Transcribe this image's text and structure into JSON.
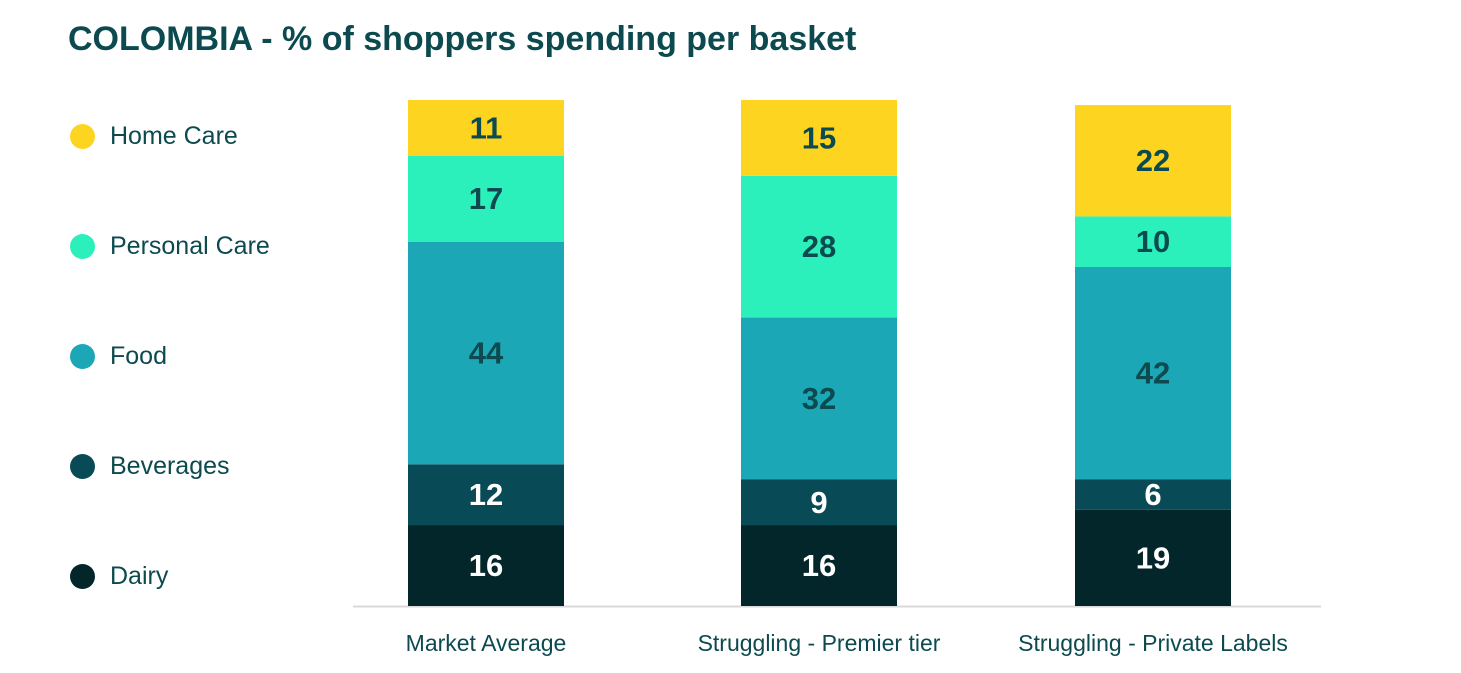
{
  "chart_data": {
    "type": "bar",
    "stacked": true,
    "title": "COLOMBIA - % of shoppers spending per basket",
    "categories": [
      "Market Average",
      "Struggling - Premier tier",
      "Struggling - Private Labels"
    ],
    "series": [
      {
        "name": "Dairy",
        "color": "#03262a",
        "label_color": "#ffffff",
        "values": [
          16,
          16,
          19
        ]
      },
      {
        "name": "Beverages",
        "color": "#084a55",
        "label_color": "#ffffff",
        "values": [
          12,
          9,
          6
        ]
      },
      {
        "name": "Food",
        "color": "#1ba7b6",
        "label_color": "#0c4a4f",
        "values": [
          44,
          32,
          42
        ]
      },
      {
        "name": "Personal Care",
        "color": "#2cf0bb",
        "label_color": "#0c4a4f",
        "values": [
          17,
          28,
          10
        ]
      },
      {
        "name": "Home Care",
        "color": "#fdd520",
        "label_color": "#0c4a4f",
        "values": [
          11,
          15,
          22
        ]
      }
    ],
    "legend_order": [
      "Home Care",
      "Personal Care",
      "Food",
      "Beverages",
      "Dairy"
    ],
    "legend_position": "left",
    "ylim": [
      0,
      100
    ],
    "grid": false,
    "xlabel": "",
    "ylabel": ""
  }
}
